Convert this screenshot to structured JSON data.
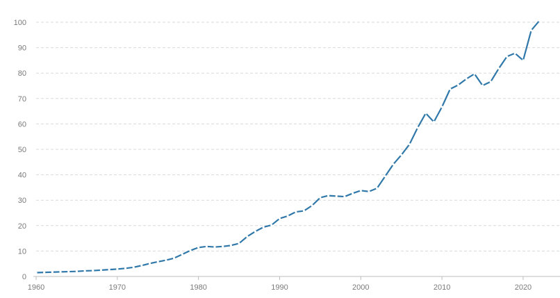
{
  "chart_data": {
    "type": "line",
    "title": "",
    "xlabel": "",
    "ylabel": "",
    "xlim": [
      1960,
      2023
    ],
    "ylim": [
      0,
      100
    ],
    "grid": true,
    "legend": "none",
    "x_ticks": [
      1960,
      1970,
      1980,
      1990,
      2000,
      2010,
      2020
    ],
    "y_ticks": [
      0,
      10,
      20,
      30,
      40,
      50,
      60,
      70,
      80,
      90,
      100
    ],
    "colors": {
      "line": "#2f78a9",
      "grid": "#d9d9d9",
      "axis": "#bdbdbd",
      "text": "#7a7a7a"
    },
    "series": [
      {
        "x": [
          1960,
          1961,
          1962,
          1963,
          1964,
          1965,
          1966,
          1967,
          1968,
          1969,
          1970,
          1971,
          1972,
          1973,
          1974,
          1975,
          1976,
          1977,
          1978,
          1979,
          1980,
          1981,
          1982,
          1983,
          1984,
          1985,
          1986,
          1987,
          1988,
          1989,
          1990,
          1991,
          1992,
          1993,
          1994,
          1995,
          1996,
          1997,
          1998,
          1999,
          2000,
          2001,
          2002,
          2003,
          2004,
          2005,
          2006,
          2007,
          2008,
          2009,
          2010,
          2011,
          2012,
          2013,
          2014,
          2015,
          2016,
          2017,
          2018,
          2019,
          2020,
          2021,
          2022
        ],
        "values": [
          1.5,
          1.6,
          1.7,
          1.8,
          1.9,
          2.0,
          2.2,
          2.3,
          2.5,
          2.7,
          2.9,
          3.2,
          3.6,
          4.3,
          5.1,
          5.8,
          6.4,
          7.2,
          8.7,
          10.2,
          11.4,
          11.8,
          11.6,
          11.8,
          12.2,
          13.0,
          15.7,
          17.7,
          19.4,
          20.2,
          22.8,
          23.8,
          25.4,
          25.8,
          27.9,
          31.0,
          31.8,
          31.6,
          31.4,
          32.7,
          33.8,
          33.4,
          34.7,
          39.4,
          44.1,
          47.8,
          52.0,
          58.5,
          64.2,
          60.8,
          66.7,
          73.7,
          75.3,
          77.7,
          79.7,
          75.1,
          76.6,
          81.8,
          86.5,
          87.8,
          85.0,
          96.8,
          100.6
        ]
      }
    ]
  }
}
